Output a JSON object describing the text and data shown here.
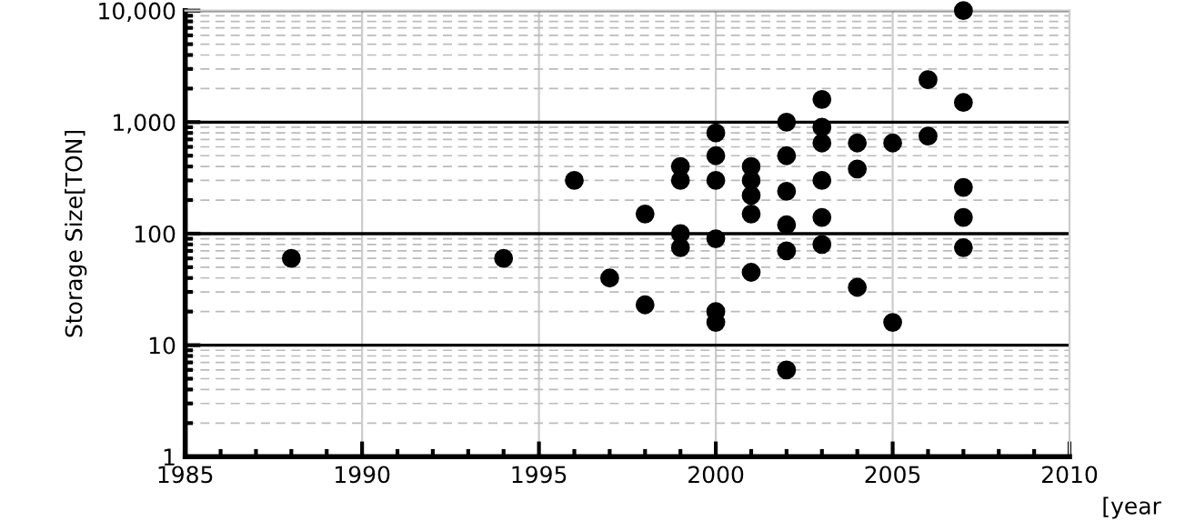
{
  "chart_data": {
    "type": "scatter",
    "xlabel": "[year",
    "ylabel": "Storage Size[TON]",
    "log": "y",
    "grid": true,
    "marker": "circle",
    "color": "#000000",
    "xlim": [
      1985,
      2010
    ],
    "xticks": [
      1985,
      1990,
      1995,
      2000,
      2005,
      2010
    ],
    "ylim": [
      1,
      10000
    ],
    "yticks": [
      1,
      10,
      100,
      {
        "value": 1000,
        "label": "1,000"
      },
      {
        "value": 10000,
        "label": "10,000"
      }
    ],
    "x": [
      1988,
      1994,
      1996,
      1997,
      1998,
      1998,
      1999,
      1999,
      1999,
      1999,
      2000,
      2000,
      2000,
      2000,
      2000,
      2000,
      2001,
      2001,
      2001,
      2001,
      2001,
      2002,
      2002,
      2002,
      2002,
      2002,
      2002,
      2003,
      2003,
      2003,
      2003,
      2003,
      2003,
      2004,
      2004,
      2004,
      2005,
      2005,
      2006,
      2006,
      2007,
      2007,
      2007,
      2007,
      2007
    ],
    "values": [
      60,
      60,
      300,
      40,
      150,
      23,
      400,
      300,
      100,
      75,
      800,
      500,
      300,
      90,
      20,
      16,
      400,
      300,
      220,
      150,
      45,
      1000,
      500,
      240,
      120,
      70,
      6,
      1600,
      900,
      650,
      300,
      140,
      80,
      650,
      380,
      33,
      650,
      16,
      2400,
      750,
      10000,
      1500,
      260,
      140,
      75
    ]
  }
}
